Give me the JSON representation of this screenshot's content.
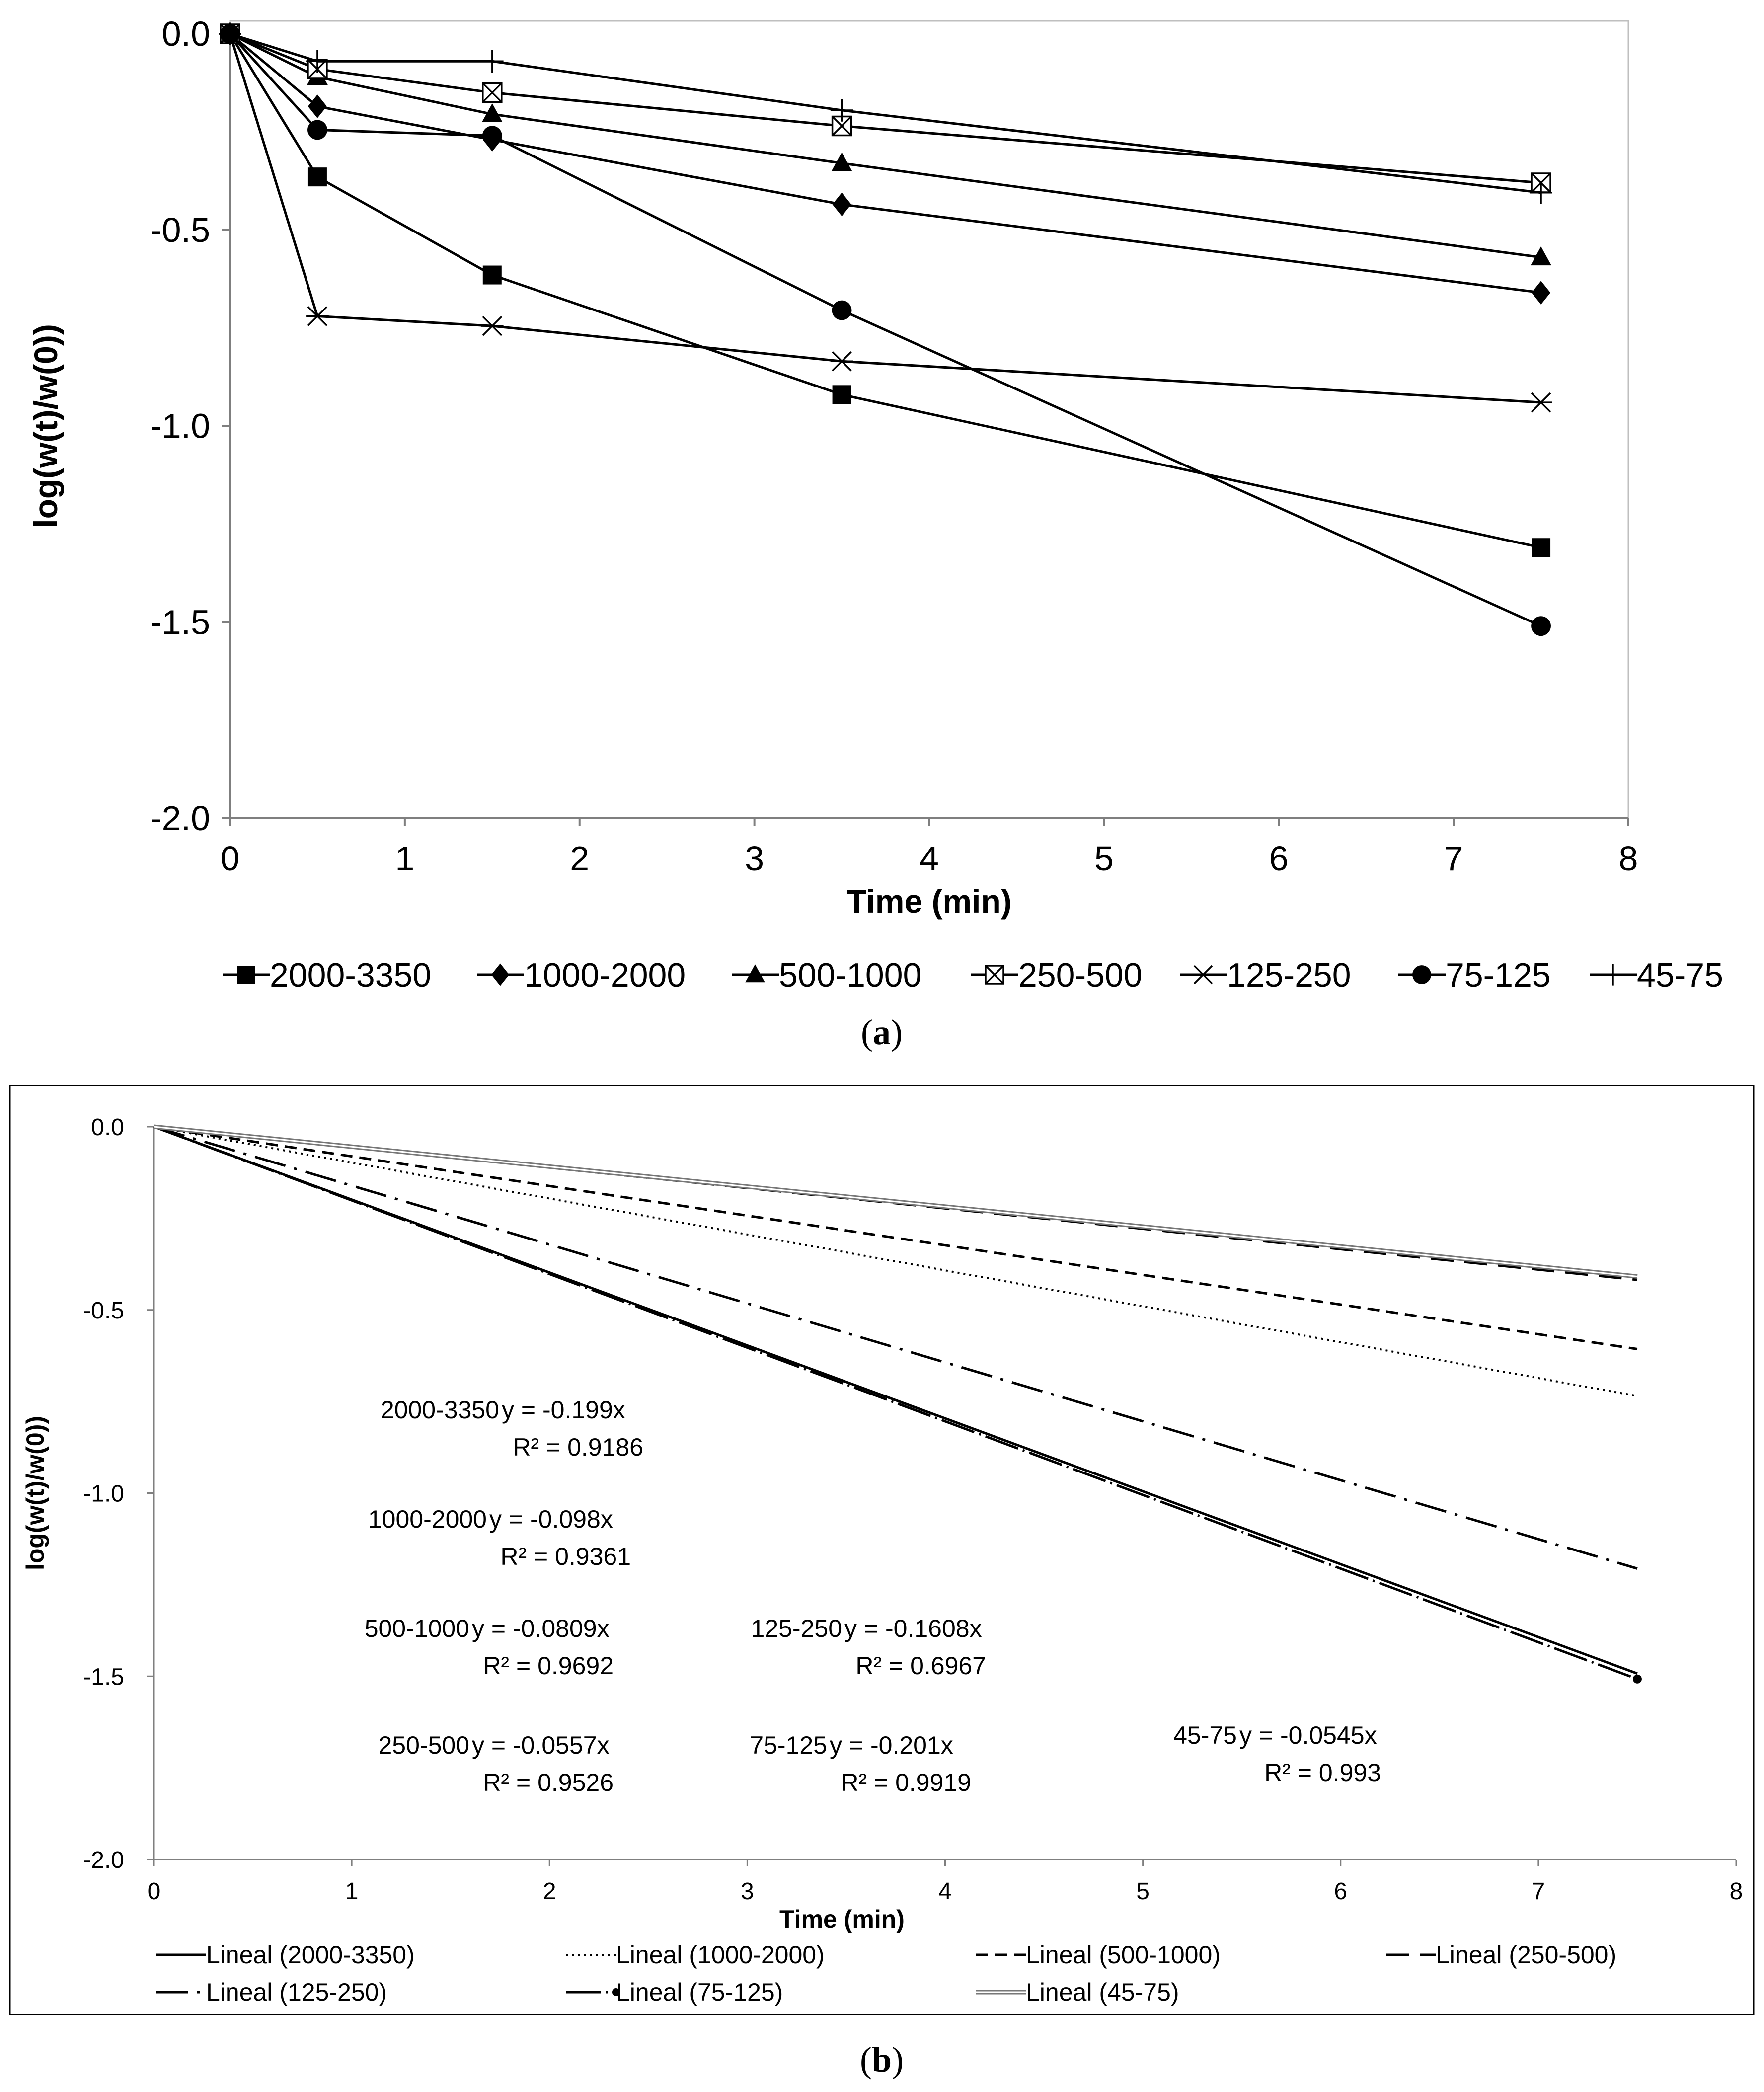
{
  "chart_data": [
    {
      "type": "line",
      "panel": "a",
      "caption_open": "(",
      "caption_letter": "a",
      "caption_close": ")",
      "xlabel": "Time (min)",
      "ylabel": "log(w(t)/w(0))",
      "xlim": [
        0,
        8
      ],
      "ylim": [
        -2.0,
        0.0
      ],
      "x_ticks": [
        "0",
        "1",
        "2",
        "3",
        "4",
        "5",
        "6",
        "7",
        "8"
      ],
      "y_ticks": [
        "0.0",
        "-0.5",
        "-1.0",
        "-1.5",
        "-2.0"
      ],
      "legend_position": "bottom",
      "grid": false,
      "x": [
        0,
        0.5,
        1.5,
        3.5,
        7.5
      ],
      "series": [
        {
          "name": "2000-3350",
          "marker": "square",
          "values": [
            0,
            -0.365,
            -0.615,
            -0.92,
            -1.31
          ]
        },
        {
          "name": "1000-2000",
          "marker": "diamond",
          "values": [
            0,
            -0.185,
            -0.27,
            -0.435,
            -0.66
          ]
        },
        {
          "name": "500-1000",
          "marker": "triangle",
          "values": [
            0,
            -0.11,
            -0.205,
            -0.33,
            -0.57
          ]
        },
        {
          "name": "250-500",
          "marker": "boxx",
          "values": [
            0,
            -0.09,
            -0.15,
            -0.235,
            -0.38
          ]
        },
        {
          "name": "125-250",
          "marker": "star",
          "values": [
            0,
            -0.72,
            -0.745,
            -0.835,
            -0.94
          ]
        },
        {
          "name": "75-125",
          "marker": "circle",
          "values": [
            0,
            -0.245,
            -0.26,
            -0.705,
            -1.51
          ]
        },
        {
          "name": "45-75",
          "marker": "plus",
          "values": [
            0,
            -0.07,
            -0.07,
            -0.195,
            -0.405
          ]
        }
      ]
    },
    {
      "type": "line",
      "panel": "b",
      "caption_open": "(",
      "caption_letter": "b",
      "caption_close": ")",
      "xlabel": "Time (min)",
      "ylabel": "log(w(t)/w(0))",
      "xlim": [
        0,
        8
      ],
      "ylim": [
        -2.0,
        0.0
      ],
      "x_ticks": [
        "0",
        "1",
        "2",
        "3",
        "4",
        "5",
        "6",
        "7",
        "8"
      ],
      "y_ticks": [
        "0.0",
        "-0.5",
        "-1.0",
        "-1.5",
        "-2.0"
      ],
      "legend_position": "bottom",
      "grid": false,
      "x_end": 7.5,
      "series": [
        {
          "name": "Lineal (2000-3350)",
          "slope": -0.199,
          "style": "solid"
        },
        {
          "name": "Lineal (1000-2000)",
          "slope": -0.098,
          "style": "dotted"
        },
        {
          "name": "Lineal (500-1000)",
          "slope": -0.0809,
          "style": "dashed"
        },
        {
          "name": "Lineal (250-500)",
          "slope": -0.0557,
          "style": "longdash"
        },
        {
          "name": "Lineal (125-250)",
          "slope": -0.1608,
          "style": "dashdot"
        },
        {
          "name": "Lineal (75-125)",
          "slope": -0.201,
          "style": "longdashdot"
        },
        {
          "name": "Lineal (45-75)",
          "slope": -0.0545,
          "style": "double"
        }
      ],
      "annotations": [
        {
          "label": "2000-3350",
          "equation": "y = -0.199x",
          "r2": "R² = 0.9186"
        },
        {
          "label": "1000-2000",
          "equation": "y = -0.098x",
          "r2": "R² = 0.9361"
        },
        {
          "label": "500-1000",
          "equation": "y = -0.0809x",
          "r2": "R² = 0.9692"
        },
        {
          "label": "125-250",
          "equation": "y = -0.1608x",
          "r2": "R² = 0.6967"
        },
        {
          "label": "250-500",
          "equation": "y = -0.0557x",
          "r2": "R² = 0.9526"
        },
        {
          "label": "75-125",
          "equation": "y = -0.201x",
          "r2": "R² = 0.9919"
        },
        {
          "label": "45-75",
          "equation": "y = -0.0545x",
          "r2": "R² = 0.993"
        }
      ]
    }
  ]
}
